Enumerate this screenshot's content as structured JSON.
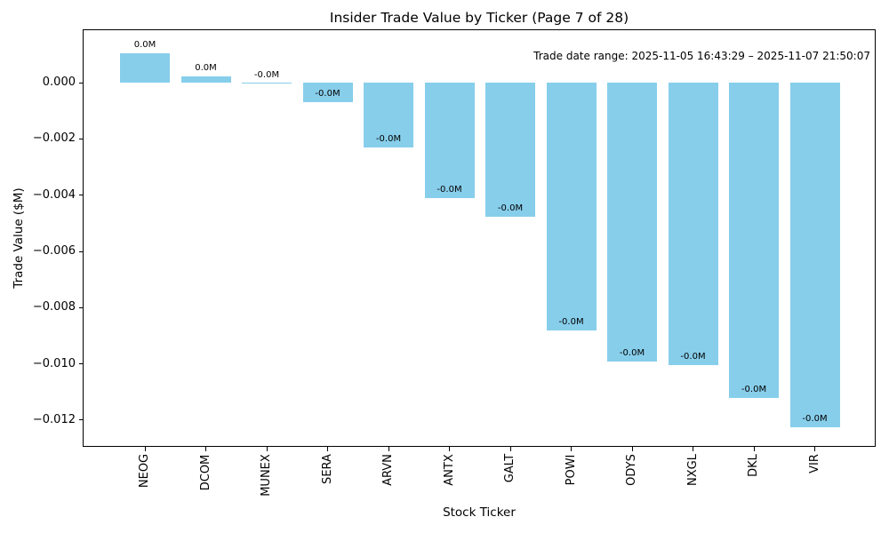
{
  "figure": {
    "background_color": "#FFFFFF",
    "text_color": "#000000"
  },
  "chart_data": {
    "type": "bar",
    "title": "Insider Trade Value by Ticker (Page 7 of 28)",
    "xlabel": "Stock Ticker",
    "ylabel": "Trade Value ($M)",
    "annotation": "Trade date range: 2025-11-05 16:43:29 – 2025-11-07 21:50:07",
    "categories": [
      "NEOG",
      "DCOM",
      "MUNEX",
      "SERA",
      "ARVN",
      "ANTX",
      "GALT",
      "POWI",
      "ODYS",
      "NXGL",
      "DKL",
      "VIR"
    ],
    "values": [
      0.00106,
      0.00021,
      -2e-05,
      -0.00069,
      -0.0023,
      -0.00409,
      -0.00476,
      -0.00882,
      -0.00991,
      -0.01005,
      -0.01122,
      -0.01226
    ],
    "bar_value_labels": [
      "0.0M",
      "0.0M",
      "-0.0M",
      "-0.0M",
      "-0.0M",
      "-0.0M",
      "-0.0M",
      "-0.0M",
      "-0.0M",
      "-0.0M",
      "-0.0M",
      "-0.0M"
    ],
    "bar_color": "#87CEEB",
    "yticks": [
      0,
      -0.002,
      -0.004,
      -0.006,
      -0.008,
      -0.01,
      -0.012
    ],
    "ytick_labels": [
      "0.000",
      "−0.002",
      "−0.004",
      "−0.006",
      "−0.008",
      "−0.010",
      "−0.012"
    ],
    "ylim": [
      -0.01295,
      0.0019
    ],
    "grid": false,
    "legend": null
  }
}
